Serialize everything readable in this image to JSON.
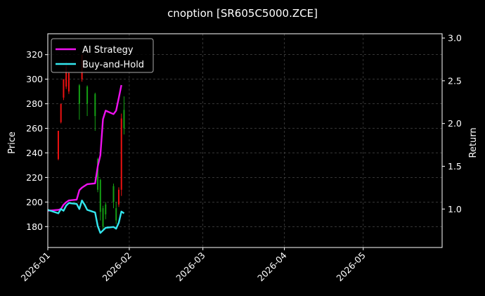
{
  "chart_data": {
    "type": "line",
    "title": "cnoption [SR605C5000.ZCE]",
    "xlabel": "",
    "ylabel": "Price",
    "ylabel_right": "Return",
    "x_range": [
      "2026-01-01",
      "2026-05-31"
    ],
    "x_ticks": [
      "2026-01",
      "2026-02",
      "2026-03",
      "2026-04",
      "2026-05"
    ],
    "ylim": [
      163,
      337
    ],
    "y_ticks": [
      180,
      200,
      220,
      240,
      260,
      280,
      300,
      320
    ],
    "ylim_right": [
      0.55,
      3.05
    ],
    "y_ticks_right": [
      1.0,
      1.5,
      2.0,
      2.5,
      3.0
    ],
    "grid": true,
    "legend_position": "top-left",
    "colors": {
      "ai_strategy": "#ee11ee",
      "buy_and_hold": "#33e6ee",
      "up_candle": "#14a014",
      "down_candle": "#ee1111",
      "grid": "#555555"
    },
    "series": [
      {
        "name": "AI Strategy",
        "axis": "right",
        "x": [
          "2026-01-01",
          "2026-01-05",
          "2026-01-06",
          "2026-01-07",
          "2026-01-08",
          "2026-01-09",
          "2026-01-12",
          "2026-01-13",
          "2026-01-14",
          "2026-01-15",
          "2026-01-16",
          "2026-01-19",
          "2026-01-20",
          "2026-01-21",
          "2026-01-22",
          "2026-01-23",
          "2026-01-26",
          "2026-01-27",
          "2026-01-28",
          "2026-01-29"
        ],
        "values": [
          0.98,
          0.99,
          1.0,
          1.05,
          1.08,
          1.1,
          1.11,
          1.22,
          1.25,
          1.27,
          1.29,
          1.3,
          1.5,
          1.63,
          2.05,
          2.15,
          2.11,
          2.15,
          2.3,
          2.45
        ]
      },
      {
        "name": "Buy-and-Hold",
        "axis": "right",
        "x": [
          "2026-01-01",
          "2026-01-05",
          "2026-01-06",
          "2026-01-07",
          "2026-01-08",
          "2026-01-09",
          "2026-01-12",
          "2026-01-13",
          "2026-01-14",
          "2026-01-15",
          "2026-01-16",
          "2026-01-19",
          "2026-01-20",
          "2026-01-21",
          "2026-01-22",
          "2026-01-23",
          "2026-01-26",
          "2026-01-27",
          "2026-01-28",
          "2026-01-29",
          "2026-01-30"
        ],
        "values": [
          0.99,
          0.95,
          1.0,
          0.98,
          1.04,
          1.07,
          1.06,
          1.0,
          1.1,
          1.05,
          0.99,
          0.96,
          0.8,
          0.72,
          0.75,
          0.78,
          0.79,
          0.77,
          0.84,
          0.97,
          0.95
        ]
      }
    ],
    "candles": [
      {
        "date": "2026-01-05",
        "open": 258,
        "close": 235,
        "high": 258,
        "low": 234
      },
      {
        "date": "2026-01-06",
        "open": 280,
        "close": 265,
        "high": 280,
        "low": 264
      },
      {
        "date": "2026-01-07",
        "open": 300,
        "close": 285,
        "high": 300,
        "low": 283
      },
      {
        "date": "2026-01-08",
        "open": 310,
        "close": 294,
        "high": 314,
        "low": 292
      },
      {
        "date": "2026-01-09",
        "open": 305,
        "close": 290,
        "high": 306,
        "low": 288
      },
      {
        "date": "2026-01-13",
        "open": 280,
        "close": 295,
        "high": 296,
        "low": 267
      },
      {
        "date": "2026-01-14",
        "open": 320,
        "close": 300,
        "high": 320,
        "low": 298
      },
      {
        "date": "2026-01-16",
        "open": 280,
        "close": 294,
        "high": 295,
        "low": 270
      },
      {
        "date": "2026-01-19",
        "open": 270,
        "close": 288,
        "high": 289,
        "low": 258
      },
      {
        "date": "2026-01-20",
        "open": 210,
        "close": 235,
        "high": 236,
        "low": 208
      },
      {
        "date": "2026-01-21",
        "open": 192,
        "close": 218,
        "high": 219,
        "low": 185
      },
      {
        "date": "2026-01-22",
        "open": 180,
        "close": 195,
        "high": 197,
        "low": 178
      },
      {
        "date": "2026-01-23",
        "open": 190,
        "close": 198,
        "high": 200,
        "low": 186
      },
      {
        "date": "2026-01-26",
        "open": 200,
        "close": 213,
        "high": 215,
        "low": 195
      },
      {
        "date": "2026-01-27",
        "open": 185,
        "close": 195,
        "high": 200,
        "low": 182
      },
      {
        "date": "2026-01-28",
        "open": 210,
        "close": 198,
        "high": 212,
        "low": 196
      },
      {
        "date": "2026-01-29",
        "open": 268,
        "close": 210,
        "high": 272,
        "low": 205
      },
      {
        "date": "2026-01-30",
        "open": 260,
        "close": 275,
        "high": 286,
        "low": 255
      }
    ]
  }
}
